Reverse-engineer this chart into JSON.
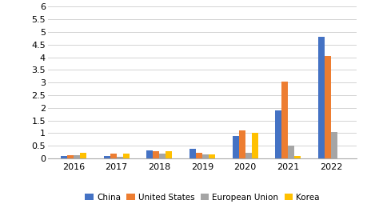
{
  "years": [
    2016,
    2017,
    2018,
    2019,
    2020,
    2021,
    2022
  ],
  "series": {
    "China": [
      0.08,
      0.1,
      0.33,
      0.38,
      0.9,
      1.9,
      4.8
    ],
    "United States": [
      0.13,
      0.2,
      0.27,
      0.23,
      1.1,
      3.05,
      4.05
    ],
    "European Union": [
      0.12,
      0.07,
      0.2,
      0.15,
      0.22,
      0.5,
      1.05
    ],
    "Korea": [
      0.22,
      0.2,
      0.27,
      0.17,
      1.02,
      0.08,
      0.0
    ]
  },
  "colors": {
    "China": "#4472C4",
    "United States": "#ED7D31",
    "European Union": "#A5A5A5",
    "Korea": "#FFC000"
  },
  "ylim": [
    0,
    6
  ],
  "yticks": [
    0,
    0.5,
    1,
    1.5,
    2,
    2.5,
    3,
    3.5,
    4,
    4.5,
    5,
    5.5,
    6
  ],
  "legend_order": [
    "China",
    "United States",
    "European Union",
    "Korea"
  ],
  "bar_width": 0.15,
  "background_color": "#FFFFFF",
  "grid_color": "#D3D3D3"
}
